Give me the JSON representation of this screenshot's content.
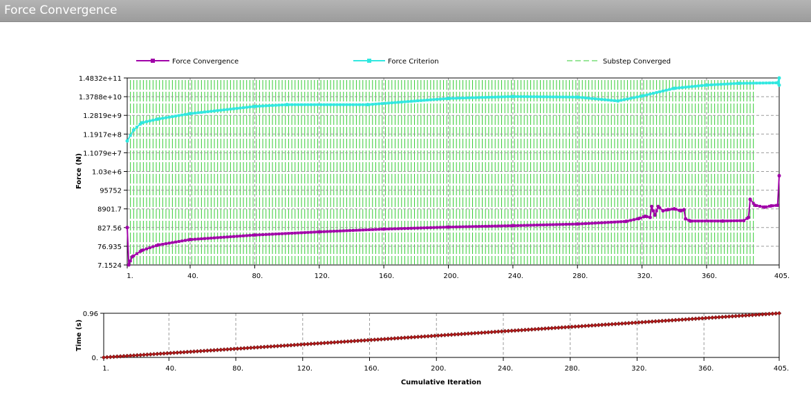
{
  "window": {
    "title": "Force Convergence"
  },
  "chart_data": [
    {
      "type": "line",
      "title": "",
      "ylabel": "Force (N)",
      "xlabel": "",
      "yscale": "log",
      "ylim": [
        7.1524,
        148320000000.0
      ],
      "xlim": [
        1,
        405
      ],
      "y_ticks": [
        "1.4832e+11",
        "1.3788e+10",
        "1.2819e+9",
        "1.1917e+8",
        "1.1079e+7",
        "1.03e+6",
        "95752",
        "8901.7",
        "827.56",
        "76.935",
        "7.1524"
      ],
      "x_ticks": [
        "1.",
        "40.",
        "80.",
        "120.",
        "160.",
        "200.",
        "240.",
        "280.",
        "320.",
        "360.",
        "405."
      ],
      "x_tick_values": [
        1,
        40,
        80,
        120,
        160,
        200,
        240,
        280,
        320,
        360,
        405
      ],
      "legend": [
        "Force Convergence",
        "Force Criterion",
        "Substep Converged"
      ],
      "legend_placement": "top",
      "series": [
        {
          "name": "Force Convergence",
          "color": "#a000a8",
          "points": [
            [
              1,
              830
            ],
            [
              2,
              7.2
            ],
            [
              4,
              20
            ],
            [
              10,
              45
            ],
            [
              20,
              90
            ],
            [
              40,
              180
            ],
            [
              80,
              320
            ],
            [
              120,
              480
            ],
            [
              160,
              680
            ],
            [
              200,
              880
            ],
            [
              240,
              1050
            ],
            [
              280,
              1300
            ],
            [
              310,
              1800
            ],
            [
              318,
              2600
            ],
            [
              322,
              3500
            ],
            [
              325,
              3000
            ],
            [
              326,
              12000
            ],
            [
              328,
              4000
            ],
            [
              330,
              12000
            ],
            [
              333,
              7000
            ],
            [
              336,
              8000
            ],
            [
              340,
              9000
            ],
            [
              344,
              7000
            ],
            [
              346,
              8000
            ],
            [
              347,
              2500
            ],
            [
              350,
              1900
            ],
            [
              370,
              1900
            ],
            [
              383,
              2000
            ],
            [
              386,
              3000
            ],
            [
              387,
              30000
            ],
            [
              390,
              14000
            ],
            [
              396,
              11000
            ],
            [
              400,
              13000
            ],
            [
              404,
              14000
            ],
            [
              405,
              600000
            ]
          ]
        },
        {
          "name": "Force Criterion",
          "color": "#30e8e0",
          "points": [
            [
              1,
              50000000.0
            ],
            [
              5,
              200000000.0
            ],
            [
              10,
              500000000.0
            ],
            [
              20,
              800000000.0
            ],
            [
              40,
              1600000000.0
            ],
            [
              80,
              4000000000.0
            ],
            [
              100,
              5000000000.0
            ],
            [
              150,
              5000000000.0
            ],
            [
              200,
              11000000000.0
            ],
            [
              240,
              14000000000.0
            ],
            [
              280,
              13000000000.0
            ],
            [
              305,
              8000000000.0
            ],
            [
              320,
              15000000000.0
            ],
            [
              340,
              40000000000.0
            ],
            [
              360,
              60000000000.0
            ],
            [
              380,
              75000000000.0
            ],
            [
              404,
              80000000000.0
            ],
            [
              405,
              148000000000.0
            ],
            [
              405,
              60000000000.0
            ]
          ]
        }
      ],
      "substep_converged": {
        "color": "#33cc33",
        "first": 3,
        "step": 2,
        "last": 389
      }
    },
    {
      "type": "line",
      "ylabel": "Time (s)",
      "xlabel": "Cumulative Iteration",
      "ylim": [
        0,
        0.96
      ],
      "xlim": [
        1,
        405
      ],
      "y_ticks": [
        "0.96",
        "0."
      ],
      "x_ticks": [
        "1.",
        "40.",
        "80.",
        "120.",
        "160.",
        "200.",
        "240.",
        "280.",
        "320.",
        "360.",
        "405."
      ],
      "x_tick_values": [
        1,
        40,
        80,
        120,
        160,
        200,
        240,
        280,
        320,
        360,
        405
      ],
      "series": [
        {
          "name": "Time",
          "color": "#b01818",
          "points": [
            [
              1,
              0
            ],
            [
              405,
              0.96
            ]
          ]
        }
      ]
    }
  ]
}
